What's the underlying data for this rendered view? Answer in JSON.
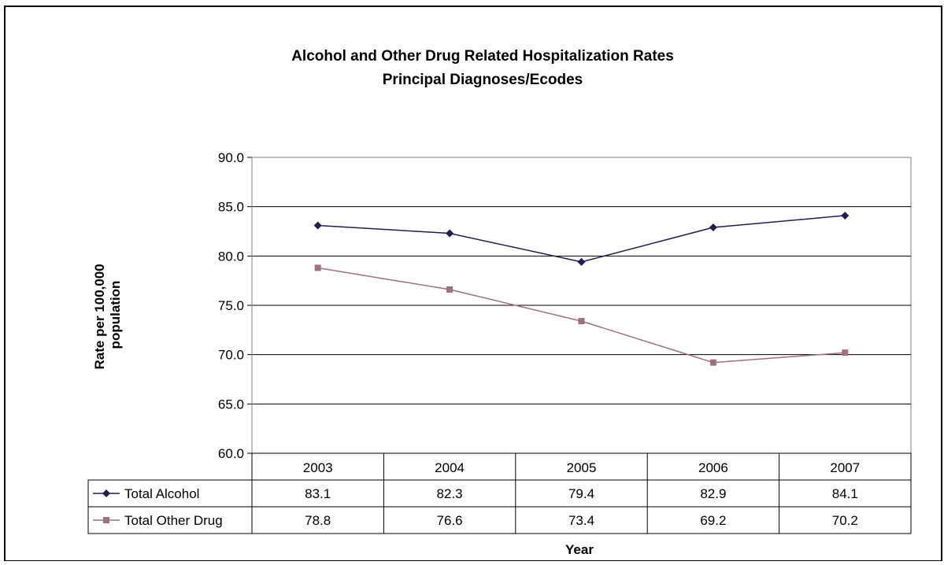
{
  "chart_data": {
    "type": "line",
    "title": "Alcohol and Other Drug Related Hospitalization Rates",
    "subtitle": "Principal Diagnoses/Ecodes",
    "xlabel": "Year",
    "ylabel_lines": [
      "Rate per 100,000",
      "population"
    ],
    "ylim": [
      60.0,
      90.0
    ],
    "yticks": [
      "60.0",
      "65.0",
      "70.0",
      "75.0",
      "80.0",
      "85.0",
      "90.0"
    ],
    "categories": [
      "2003",
      "2004",
      "2005",
      "2006",
      "2007"
    ],
    "grid": true,
    "legend": "data-table",
    "series": [
      {
        "name": "Total Alcohol",
        "values": [
          83.1,
          82.3,
          79.4,
          82.9,
          84.1
        ],
        "labels": [
          "83.1",
          "82.3",
          "79.4",
          "82.9",
          "84.1"
        ],
        "color": "#1f1f4f",
        "marker": "diamond"
      },
      {
        "name": "Total Other Drug",
        "values": [
          78.8,
          76.6,
          73.4,
          69.2,
          70.2
        ],
        "labels": [
          "78.8",
          "76.6",
          "73.4",
          "69.2",
          "70.2"
        ],
        "color": "#a0707c",
        "marker": "square"
      }
    ]
  }
}
